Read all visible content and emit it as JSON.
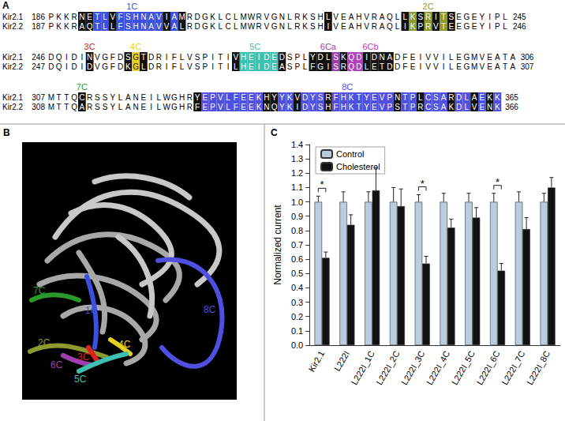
{
  "panel_labels": [
    "A",
    "B",
    "C"
  ],
  "alignment": {
    "blocks": [
      {
        "labels": [
          {
            "text": "1C",
            "start": 4,
            "length": 14,
            "color": "#3b4fe0"
          },
          {
            "text": "2C",
            "start": 46,
            "length": 7,
            "color": "#8c9a2e"
          }
        ],
        "rows": [
          {
            "name": "Kir2.1",
            "start": 186,
            "end": 245,
            "sequence": "PKKRNETLVFSHNAVIAMRDGKLCLMWRVGNLRKSHLVEAHVRAQLLKSRITSEGEYIPL"
          },
          {
            "name": "Kir2.2",
            "start": 187,
            "end": 246,
            "sequence": "PKKRAQTLLFSHNAVVALRDGKLCLMWRVGNLRKSHIVEAHVRAQLIKPRVTEEGEYIPL"
          }
        ]
      },
      {
        "labels": [
          {
            "text": "3C",
            "start": 5,
            "length": 1,
            "color": "#e02020"
          },
          {
            "text": "4C",
            "start": 10,
            "length": 3,
            "color": "#e8d020"
          },
          {
            "text": "5C",
            "start": 24,
            "length": 6,
            "color": "#3cc0b0"
          },
          {
            "text": "6Ca",
            "start": 34,
            "length": 5,
            "color": "#9a3fb0"
          },
          {
            "text": "6Cb",
            "start": 39,
            "length": 6,
            "color": "#b040c0"
          }
        ],
        "rows": [
          {
            "name": "Kir2.1",
            "start": 246,
            "end": 306,
            "sequence": "DQIDINVGFDSGTDRIFLVSPITIVHEIDEDSPLYDLSKQDIDNADFEIVVILEGMVEATA"
          },
          {
            "name": "Kir2.2",
            "start": 247,
            "end": 307,
            "sequence": "DQIDIDVGFDKGLDRIFLVSPITILHEIDEASPLFGISRQDLETDDFEIVVILEGMVEATA"
          }
        ]
      },
      {
        "labels": [
          {
            "text": "7C",
            "start": 4,
            "length": 1,
            "color": "#2a9a2a"
          },
          {
            "text": "8C",
            "start": 19,
            "length": 40,
            "color": "#5050e0"
          }
        ],
        "rows": [
          {
            "name": "Kir2.1",
            "start": 307,
            "end": 365,
            "sequence": "MTTQCRSSYLANEILWGHRYEPVLFEEKHYYKVDYSRFHKTYEVPNTPLCSARDLAEKK"
          },
          {
            "name": "Kir2.2",
            "start": 308,
            "end": 366,
            "sequence": "MTTQARSSYLANEILWGHRFEPVLFEEKNQYKIDYSHFHKTYEVPSTPRCSAKDLVENK"
          }
        ]
      }
    ]
  },
  "structure": {
    "labels": [
      {
        "text": "7C",
        "color": "#2a9a2a"
      },
      {
        "text": "1C",
        "color": "#3b4fe0"
      },
      {
        "text": "8C",
        "color": "#5050e0"
      },
      {
        "text": "2C",
        "color": "#8c9a2e"
      },
      {
        "text": "3C",
        "color": "#e02020"
      },
      {
        "text": "4C",
        "color": "#e8d020"
      },
      {
        "text": "6C",
        "color": "#a040b0"
      },
      {
        "text": "5C",
        "color": "#3cc0b0"
      }
    ]
  },
  "chart_data": {
    "type": "bar",
    "categories": [
      "Kir2.1",
      "L222I",
      "L222I_1C",
      "L222I_2C",
      "L222I_3C",
      "L222I_4C",
      "L222I_5C",
      "L222I_6C",
      "L222I_7C",
      "L222I_8C"
    ],
    "series": [
      {
        "name": "Control",
        "color": "#b9cde0",
        "values": [
          1,
          1,
          1,
          1,
          1,
          1,
          1,
          1,
          1,
          1
        ],
        "errors": [
          0.04,
          0.07,
          0.07,
          0.1,
          0.05,
          0.06,
          0.06,
          0.06,
          0.07,
          0.06
        ]
      },
      {
        "name": "Cholesterol",
        "color": "#111111",
        "values": [
          0.61,
          0.84,
          1.08,
          0.97,
          0.57,
          0.82,
          0.89,
          0.52,
          0.81,
          1.1
        ],
        "errors": [
          0.04,
          0.07,
          0.16,
          0.12,
          0.05,
          0.06,
          0.07,
          0.05,
          0.08,
          0.07
        ]
      }
    ],
    "ylabel": "Normalized current",
    "ylim": [
      0,
      1.4
    ],
    "yticks": [
      {
        "value": 0,
        "label": "0.0"
      },
      0.1,
      0.2,
      0.3,
      0.4,
      0.5,
      0.6,
      0.7,
      0.8,
      0.9,
      {
        "value": 1,
        "label": "1.0"
      },
      1.1,
      1.2,
      1.3,
      1.4
    ],
    "legend": "upper left",
    "grid": false,
    "annotations": [
      {
        "category": "Kir2.1",
        "text": "*"
      },
      {
        "category": "L222I_3C",
        "text": "*"
      },
      {
        "category": "L222I_6C",
        "text": "*"
      }
    ]
  }
}
